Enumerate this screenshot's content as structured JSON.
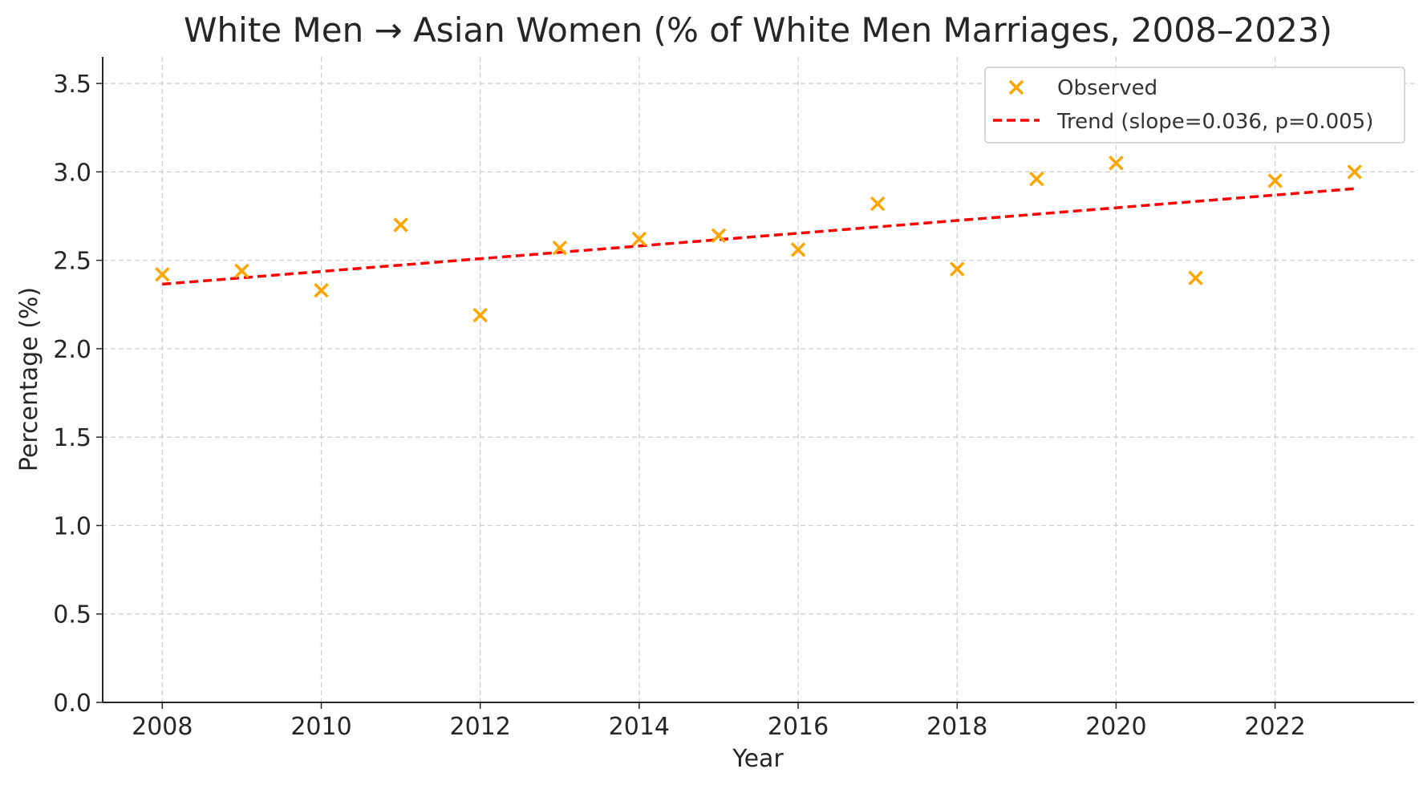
{
  "chart_data": {
    "type": "scatter",
    "title": "White Men → Asian Women (% of White Men Marriages, 2008–2023)",
    "xlabel": "Year",
    "ylabel": "Percentage (%)",
    "xlim": [
      2007.25,
      2023.75
    ],
    "ylim": [
      0,
      3.65
    ],
    "xticks": [
      2008,
      2010,
      2012,
      2014,
      2016,
      2018,
      2020,
      2022
    ],
    "yticks": [
      0.0,
      0.5,
      1.0,
      1.5,
      2.0,
      2.5,
      3.0,
      3.5
    ],
    "grid": true,
    "legend_position": "top-right",
    "series": [
      {
        "name": "Observed",
        "kind": "scatter",
        "marker": "x",
        "color": "#FFA500",
        "x": [
          2008,
          2009,
          2010,
          2011,
          2012,
          2013,
          2014,
          2015,
          2016,
          2017,
          2018,
          2019,
          2020,
          2021,
          2022,
          2023
        ],
        "y": [
          2.42,
          2.44,
          2.33,
          2.7,
          2.19,
          2.57,
          2.62,
          2.64,
          2.56,
          2.82,
          2.45,
          2.96,
          3.05,
          2.4,
          2.95,
          3.0
        ]
      },
      {
        "name": "Trend (slope=0.036, p=0.005)",
        "kind": "line",
        "style": "dashed",
        "color": "#FF0000",
        "x": [
          2008,
          2023
        ],
        "y": [
          2.365,
          2.905
        ]
      }
    ]
  }
}
